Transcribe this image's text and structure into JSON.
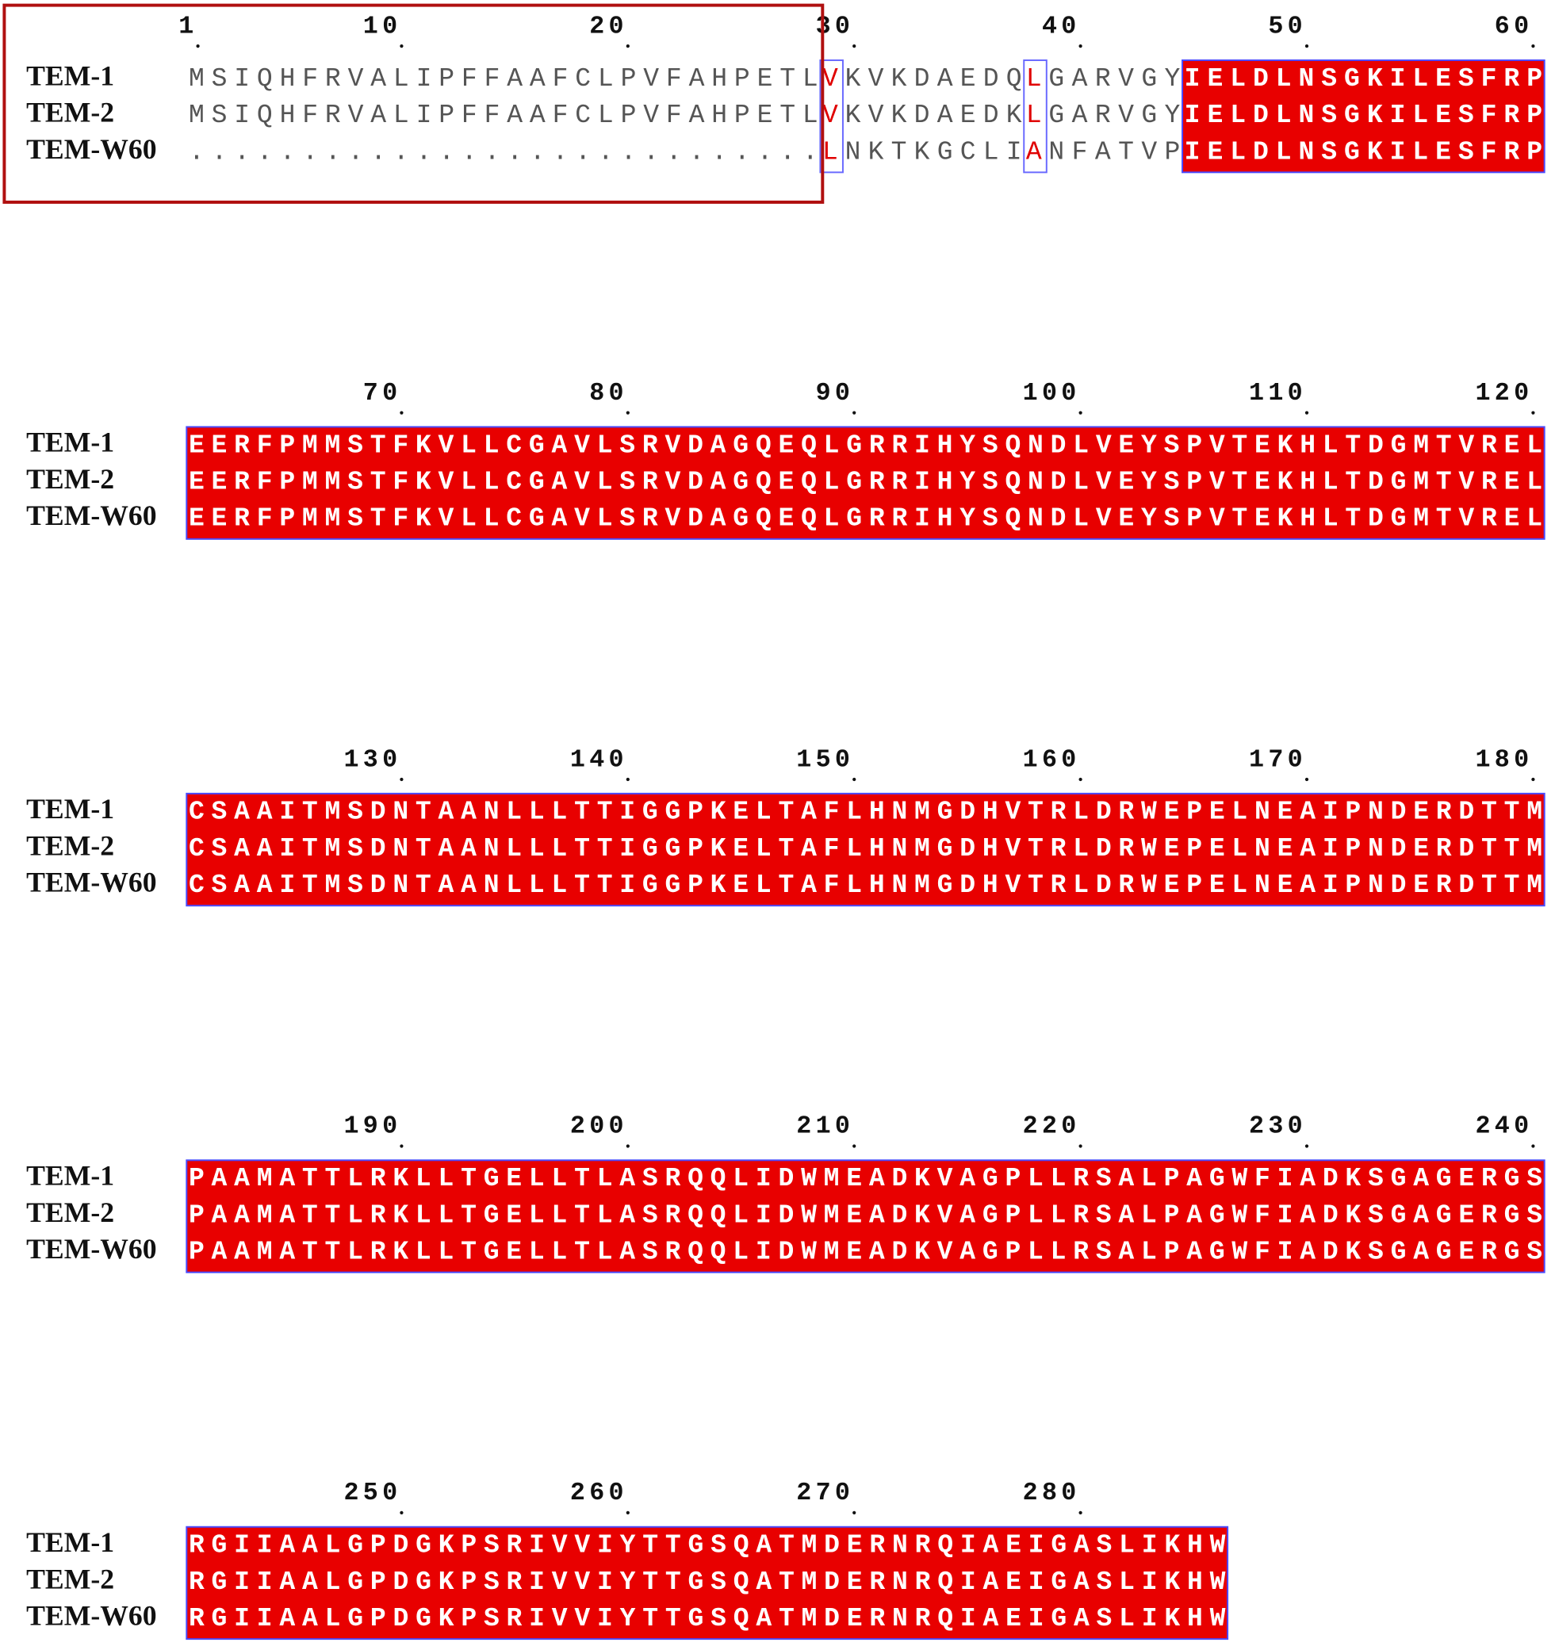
{
  "blocks": [
    {
      "ruler": [
        1,
        10,
        20,
        30,
        40,
        50,
        60
      ],
      "segment_kinds": [
        "plain",
        "similar",
        "plain",
        "similar",
        "plain",
        "identical"
      ],
      "rows": [
        {
          "name": "TEM-1",
          "segments": [
            "MSIQHFRVALIPFFAAFCLPVFAHPETL",
            "V",
            "KVKDAEDQ",
            "L",
            "GARVGY",
            "IELDLNSGKILESFRP"
          ]
        },
        {
          "name": "TEM-2",
          "segments": [
            "MSIQHFRVALIPFFAAFCLPVFAHPETL",
            "V",
            "KVKDAEDK",
            "L",
            "GARVGY",
            "IELDLNSGKILESFRP"
          ]
        },
        {
          "name": "TEM-W60",
          "segments": [
            "............................",
            "L",
            "NKTKGCLI",
            "A",
            "NFATVP",
            "IELDLNSGKILESFRP"
          ]
        }
      ]
    },
    {
      "ruler": [
        70,
        80,
        90,
        100,
        110,
        120
      ],
      "segment_kinds": [
        "identical"
      ],
      "rows": [
        {
          "name": "TEM-1",
          "segments": [
            "EERFPMMSTFKVLLCGAVLSRVDAGQEQLGRRIHYSQNDLVEYSPVTEKHLTDGMTVREL"
          ]
        },
        {
          "name": "TEM-2",
          "segments": [
            "EERFPMMSTFKVLLCGAVLSRVDAGQEQLGRRIHYSQNDLVEYSPVTEKHLTDGMTVREL"
          ]
        },
        {
          "name": "TEM-W60",
          "segments": [
            "EERFPMMSTFKVLLCGAVLSRVDAGQEQLGRRIHYSQNDLVEYSPVTEKHLTDGMTVREL"
          ]
        }
      ]
    },
    {
      "ruler": [
        130,
        140,
        150,
        160,
        170,
        180
      ],
      "segment_kinds": [
        "identical"
      ],
      "rows": [
        {
          "name": "TEM-1",
          "segments": [
            "CSAAITMSDNTAANLLLTTIGGPKELTAFLHNMGDHVTRLDRWEPELNEAIPNDERDTTM"
          ]
        },
        {
          "name": "TEM-2",
          "segments": [
            "CSAAITMSDNTAANLLLTTIGGPKELTAFLHNMGDHVTRLDRWEPELNEAIPNDERDTTM"
          ]
        },
        {
          "name": "TEM-W60",
          "segments": [
            "CSAAITMSDNTAANLLLTTIGGPKELTAFLHNMGDHVTRLDRWEPELNEAIPNDERDTTM"
          ]
        }
      ]
    },
    {
      "ruler": [
        190,
        200,
        210,
        220,
        230,
        240
      ],
      "segment_kinds": [
        "identical"
      ],
      "rows": [
        {
          "name": "TEM-1",
          "segments": [
            "PAAMATTLRKLLTGELLTLASRQQLIDWMEADKVAGPLLRSALPAGWFIADKSGAGERGS"
          ]
        },
        {
          "name": "TEM-2",
          "segments": [
            "PAAMATTLRKLLTGELLTLASRQQLIDWMEADKVAGPLLRSALPAGWFIADKSGAGERGS"
          ]
        },
        {
          "name": "TEM-W60",
          "segments": [
            "PAAMATTLRKLLTGELLTLASRQQLIDWMEADKVAGPLLRSALPAGWFIADKSGAGERGS"
          ]
        }
      ]
    },
    {
      "ruler": [
        250,
        260,
        270,
        280
      ],
      "segment_kinds": [
        "identical"
      ],
      "rows": [
        {
          "name": "TEM-1",
          "segments": [
            "RGIIAALGPDGKPSRIVVIYTTGSQATMDERNRQIAEIGASLIKHW"
          ]
        },
        {
          "name": "TEM-2",
          "segments": [
            "RGIIAALGPDGKPSRIVVIYTTGSQATMDERNRQIAEIGASLIKHW"
          ]
        },
        {
          "name": "TEM-W60",
          "segments": [
            "RGIIAALGPDGKPSRIVVIYTTGSQATMDERNRQIAEIGASLIKHW"
          ]
        }
      ]
    }
  ]
}
